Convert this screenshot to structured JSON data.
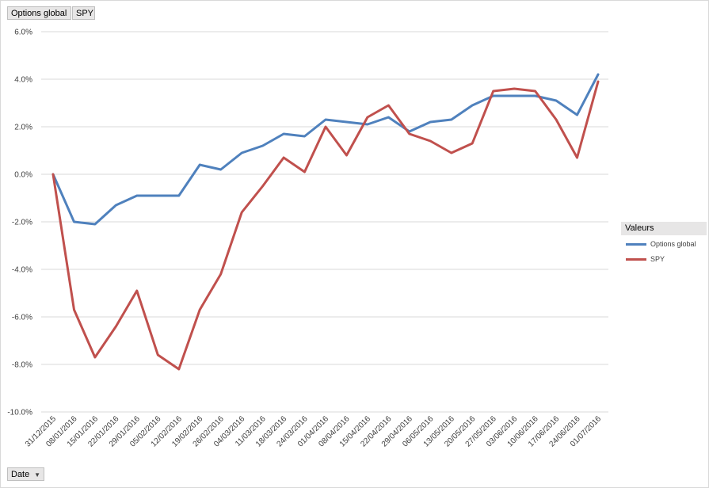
{
  "filters": {
    "options_label": "Options global",
    "spy_label": "SPY"
  },
  "axis_field": {
    "label": "Date"
  },
  "legend": {
    "title": "Valeurs",
    "items": [
      {
        "name": "Options global",
        "color": "#4f81bd"
      },
      {
        "name": "SPY",
        "color": "#c0504d"
      }
    ]
  },
  "chart_data": {
    "type": "line",
    "categories": [
      "31/12/2015",
      "08/01/2016",
      "15/01/2016",
      "22/01/2016",
      "29/01/2016",
      "05/02/2016",
      "12/02/2016",
      "19/02/2016",
      "26/02/2016",
      "04/03/2016",
      "11/03/2016",
      "18/03/2016",
      "24/03/2016",
      "01/04/2016",
      "08/04/2016",
      "15/04/2016",
      "22/04/2016",
      "29/04/2016",
      "06/05/2016",
      "13/05/2016",
      "20/05/2016",
      "27/05/2016",
      "03/06/2016",
      "10/06/2016",
      "17/06/2016",
      "24/06/2016",
      "01/07/2016"
    ],
    "series": [
      {
        "name": "Options global",
        "color": "#4f81bd",
        "values": [
          0.0,
          -2.0,
          -2.1,
          -1.3,
          -0.9,
          -0.9,
          -0.9,
          0.4,
          0.2,
          0.9,
          1.2,
          1.7,
          1.6,
          2.3,
          2.2,
          2.1,
          2.4,
          1.8,
          2.2,
          2.3,
          2.9,
          3.3,
          3.3,
          3.3,
          3.1,
          2.5,
          4.2
        ]
      },
      {
        "name": "SPY",
        "color": "#c0504d",
        "values": [
          0.0,
          -5.7,
          -7.7,
          -6.4,
          -4.9,
          -7.6,
          -8.2,
          -5.7,
          -4.2,
          -1.6,
          -0.5,
          0.7,
          0.1,
          2.0,
          0.8,
          2.4,
          2.9,
          1.7,
          1.4,
          0.9,
          1.3,
          3.5,
          3.6,
          3.5,
          2.3,
          0.7,
          3.9
        ]
      }
    ],
    "y_ticks": [
      "6.0%",
      "4.0%",
      "2.0%",
      "0.0%",
      "-2.0%",
      "-4.0%",
      "-6.0%",
      "-8.0%",
      "-10.0%"
    ],
    "ylim": [
      -10,
      6
    ],
    "y_unit": "%",
    "grid": true,
    "legend_position": "right"
  }
}
